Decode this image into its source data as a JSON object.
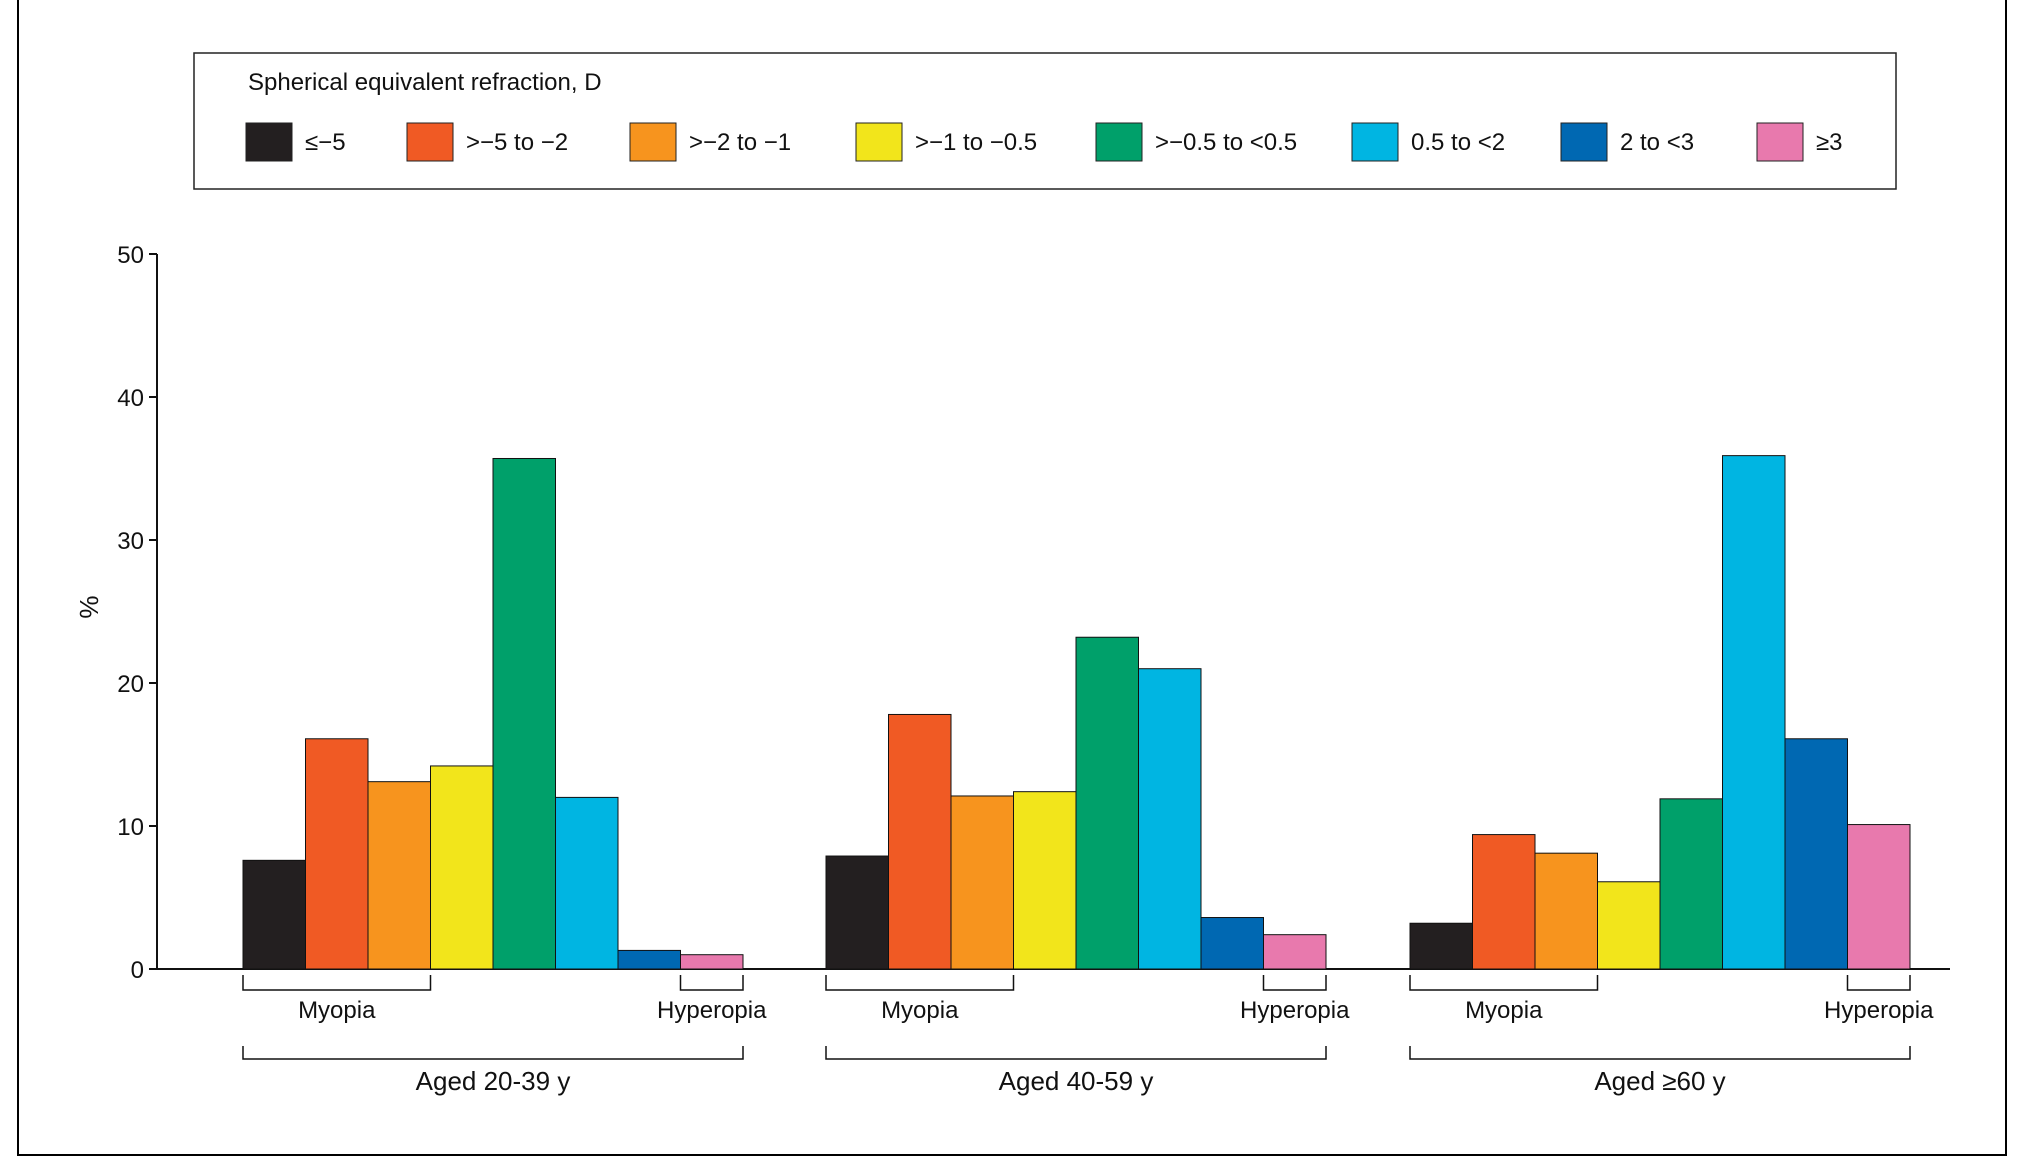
{
  "chart_data": {
    "type": "bar",
    "legend_title": "Spherical equivalent refraction, D",
    "legend_placement": "top",
    "ylabel": "%",
    "ylim": [
      0,
      50
    ],
    "yticks": [
      "0",
      "10",
      "20",
      "30",
      "40",
      "50"
    ],
    "grid": false,
    "series": [
      {
        "name": "≤−5",
        "color": "#231f20"
      },
      {
        "name": ">−5 to −2",
        "color": "#f05a24"
      },
      {
        "name": ">−2 to −1",
        "color": "#f7941e"
      },
      {
        "name": ">−1 to −0.5",
        "color": "#f2e51b"
      },
      {
        "name": ">−0.5 to <0.5",
        "color": "#00a06a"
      },
      {
        "name": "0.5 to <2",
        "color": "#00b5e2"
      },
      {
        "name": "2 to <3",
        "color": "#0068b2"
      },
      {
        "name": "≥3",
        "color": "#e879ad"
      }
    ],
    "groups": [
      {
        "label": "Aged 20-39 y",
        "myopia_label": "Myopia",
        "hyperopia_label": "Hyperopia",
        "values": [
          7.6,
          16.1,
          13.1,
          14.2,
          35.7,
          12.0,
          1.3,
          1.0
        ]
      },
      {
        "label": "Aged 40-59 y",
        "myopia_label": "Myopia",
        "hyperopia_label": "Hyperopia",
        "values": [
          7.9,
          17.8,
          12.1,
          12.4,
          23.2,
          21.0,
          3.6,
          2.4
        ]
      },
      {
        "label": "Aged ≥60 y",
        "myopia_label": "Myopia",
        "hyperopia_label": "Hyperopia",
        "values": [
          3.2,
          9.4,
          8.1,
          6.1,
          11.9,
          35.9,
          16.1,
          10.1
        ]
      }
    ]
  }
}
